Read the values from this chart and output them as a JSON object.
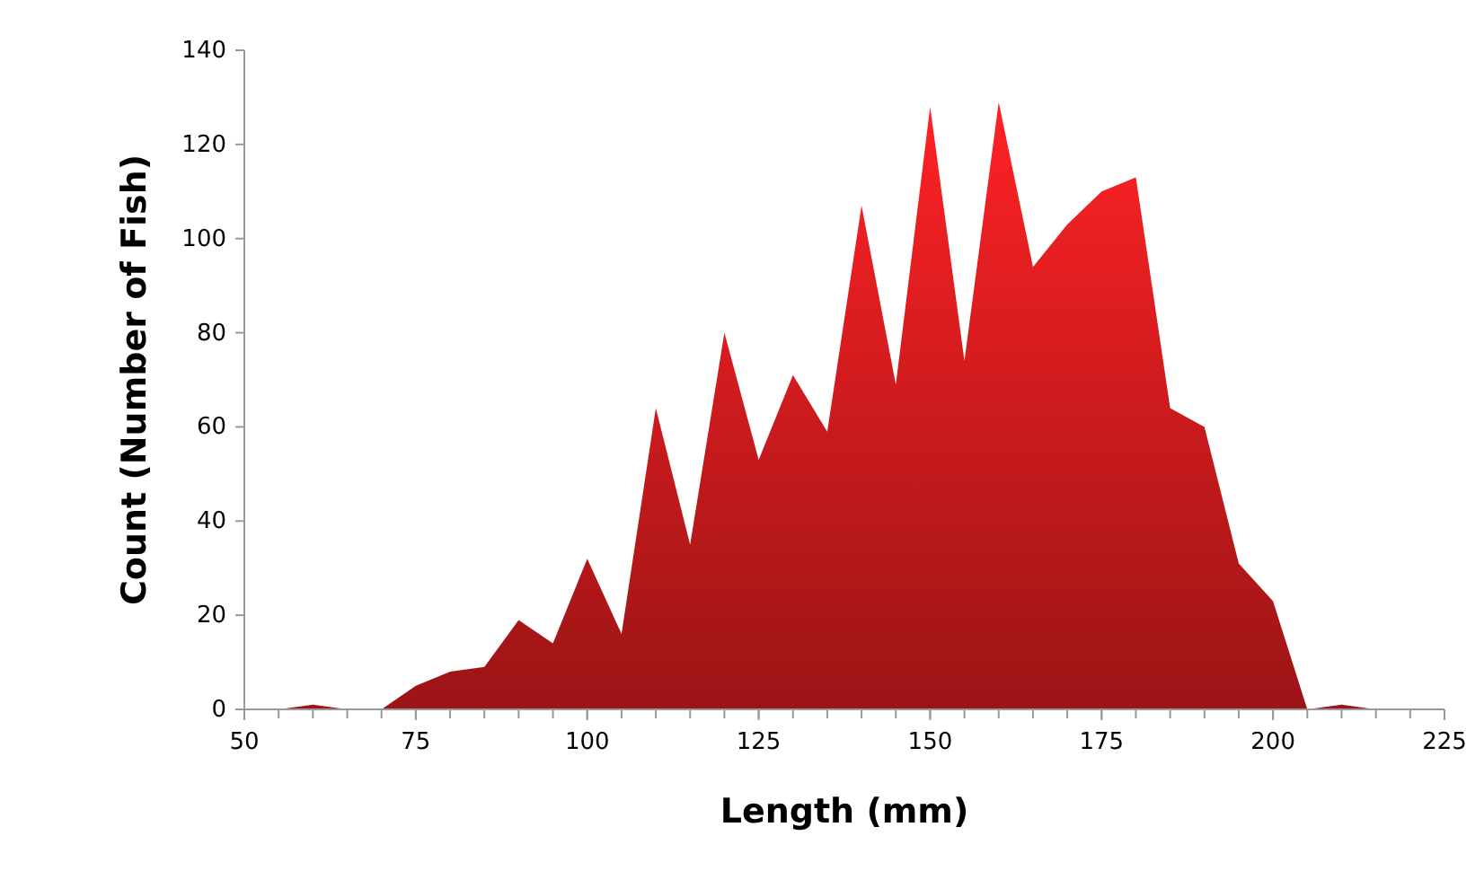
{
  "chart_data": {
    "type": "area",
    "xlabel": "Length (mm)",
    "ylabel": "Count (Number of Fish)",
    "x": [
      55,
      60,
      65,
      70,
      75,
      80,
      85,
      90,
      95,
      100,
      105,
      110,
      115,
      120,
      125,
      130,
      135,
      140,
      145,
      150,
      155,
      160,
      165,
      170,
      175,
      180,
      185,
      190,
      195,
      200,
      205,
      210,
      215
    ],
    "series": [
      {
        "color": "#c0191b",
        "values": [
          0,
          1,
          0,
          0,
          5,
          8,
          9,
          19,
          14,
          32,
          16,
          64,
          35,
          80,
          53,
          71,
          59,
          107,
          69,
          128,
          74,
          129,
          94,
          103,
          110,
          113,
          64,
          60,
          31,
          23,
          0,
          1,
          0
        ]
      }
    ],
    "xlim": [
      50,
      225
    ],
    "xticks": [
      50,
      75,
      100,
      125,
      150,
      175,
      200,
      225
    ],
    "ylim": [
      0,
      140
    ],
    "yticks": [
      0,
      20,
      40,
      60,
      80,
      100,
      120,
      140
    ],
    "grid": false
  }
}
